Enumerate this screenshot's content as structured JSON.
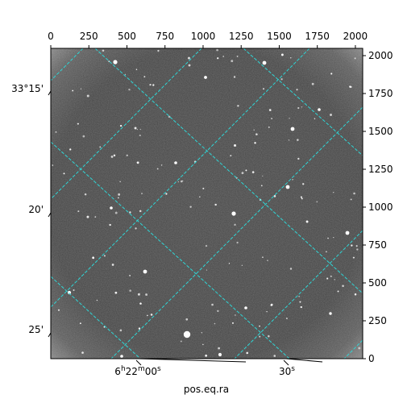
{
  "chart_data": {
    "type": "image",
    "colormap": "gray",
    "xlabel": "pos.eq.ra",
    "ylabel": "",
    "xlim": [
      0,
      2048
    ],
    "ylim": [
      0,
      2048
    ],
    "grid": true,
    "grid_color": "#2fd6d6",
    "pixel_ticks": {
      "top": [
        "0",
        "250",
        "500",
        "750",
        "1000",
        "1250",
        "1500",
        "1750",
        "2000"
      ],
      "right": [
        "0",
        "250",
        "500",
        "750",
        "1000",
        "1250",
        "1500",
        "1750",
        "2000"
      ]
    },
    "world_ticks": {
      "bottom": [
        {
          "main": "6",
          "unit1": "h",
          "mid": "22",
          "unit2": "m",
          "tail": "00",
          "unit3": "s"
        },
        {
          "main": "30",
          "unit3": "s"
        }
      ],
      "left": [
        "33°15'",
        "20'",
        "25'"
      ]
    }
  }
}
